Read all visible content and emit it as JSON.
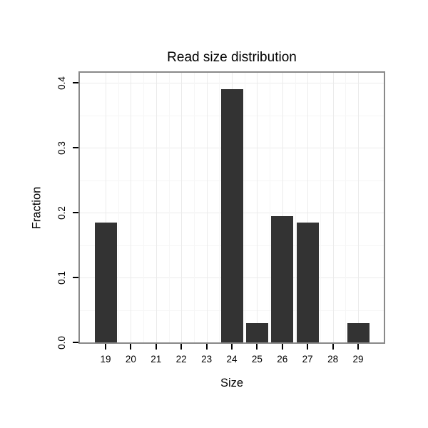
{
  "chart_data": {
    "type": "bar",
    "title": "Read size distribution",
    "xlabel": "Size",
    "ylabel": "Fraction",
    "categories": [
      "19",
      "20",
      "21",
      "22",
      "23",
      "24",
      "25",
      "26",
      "27",
      "28",
      "29"
    ],
    "values": [
      0.185,
      0,
      0,
      0,
      0,
      0.39,
      0.03,
      0.195,
      0.185,
      0,
      0.03
    ],
    "ylim": [
      0,
      0.4
    ],
    "yticks": [
      0,
      0.1,
      0.2,
      0.3,
      0.4
    ],
    "ytick_labels": [
      "0.0",
      "0.1",
      "0.2",
      "0.3",
      "0.4"
    ],
    "grid": true,
    "legend": "none",
    "bar_color": "#333333",
    "panel_border_color": "#898989",
    "grid_major_color": "#ebebeb",
    "grid_minor_color": "#f6f6f6",
    "background_color": "#ffffff"
  }
}
